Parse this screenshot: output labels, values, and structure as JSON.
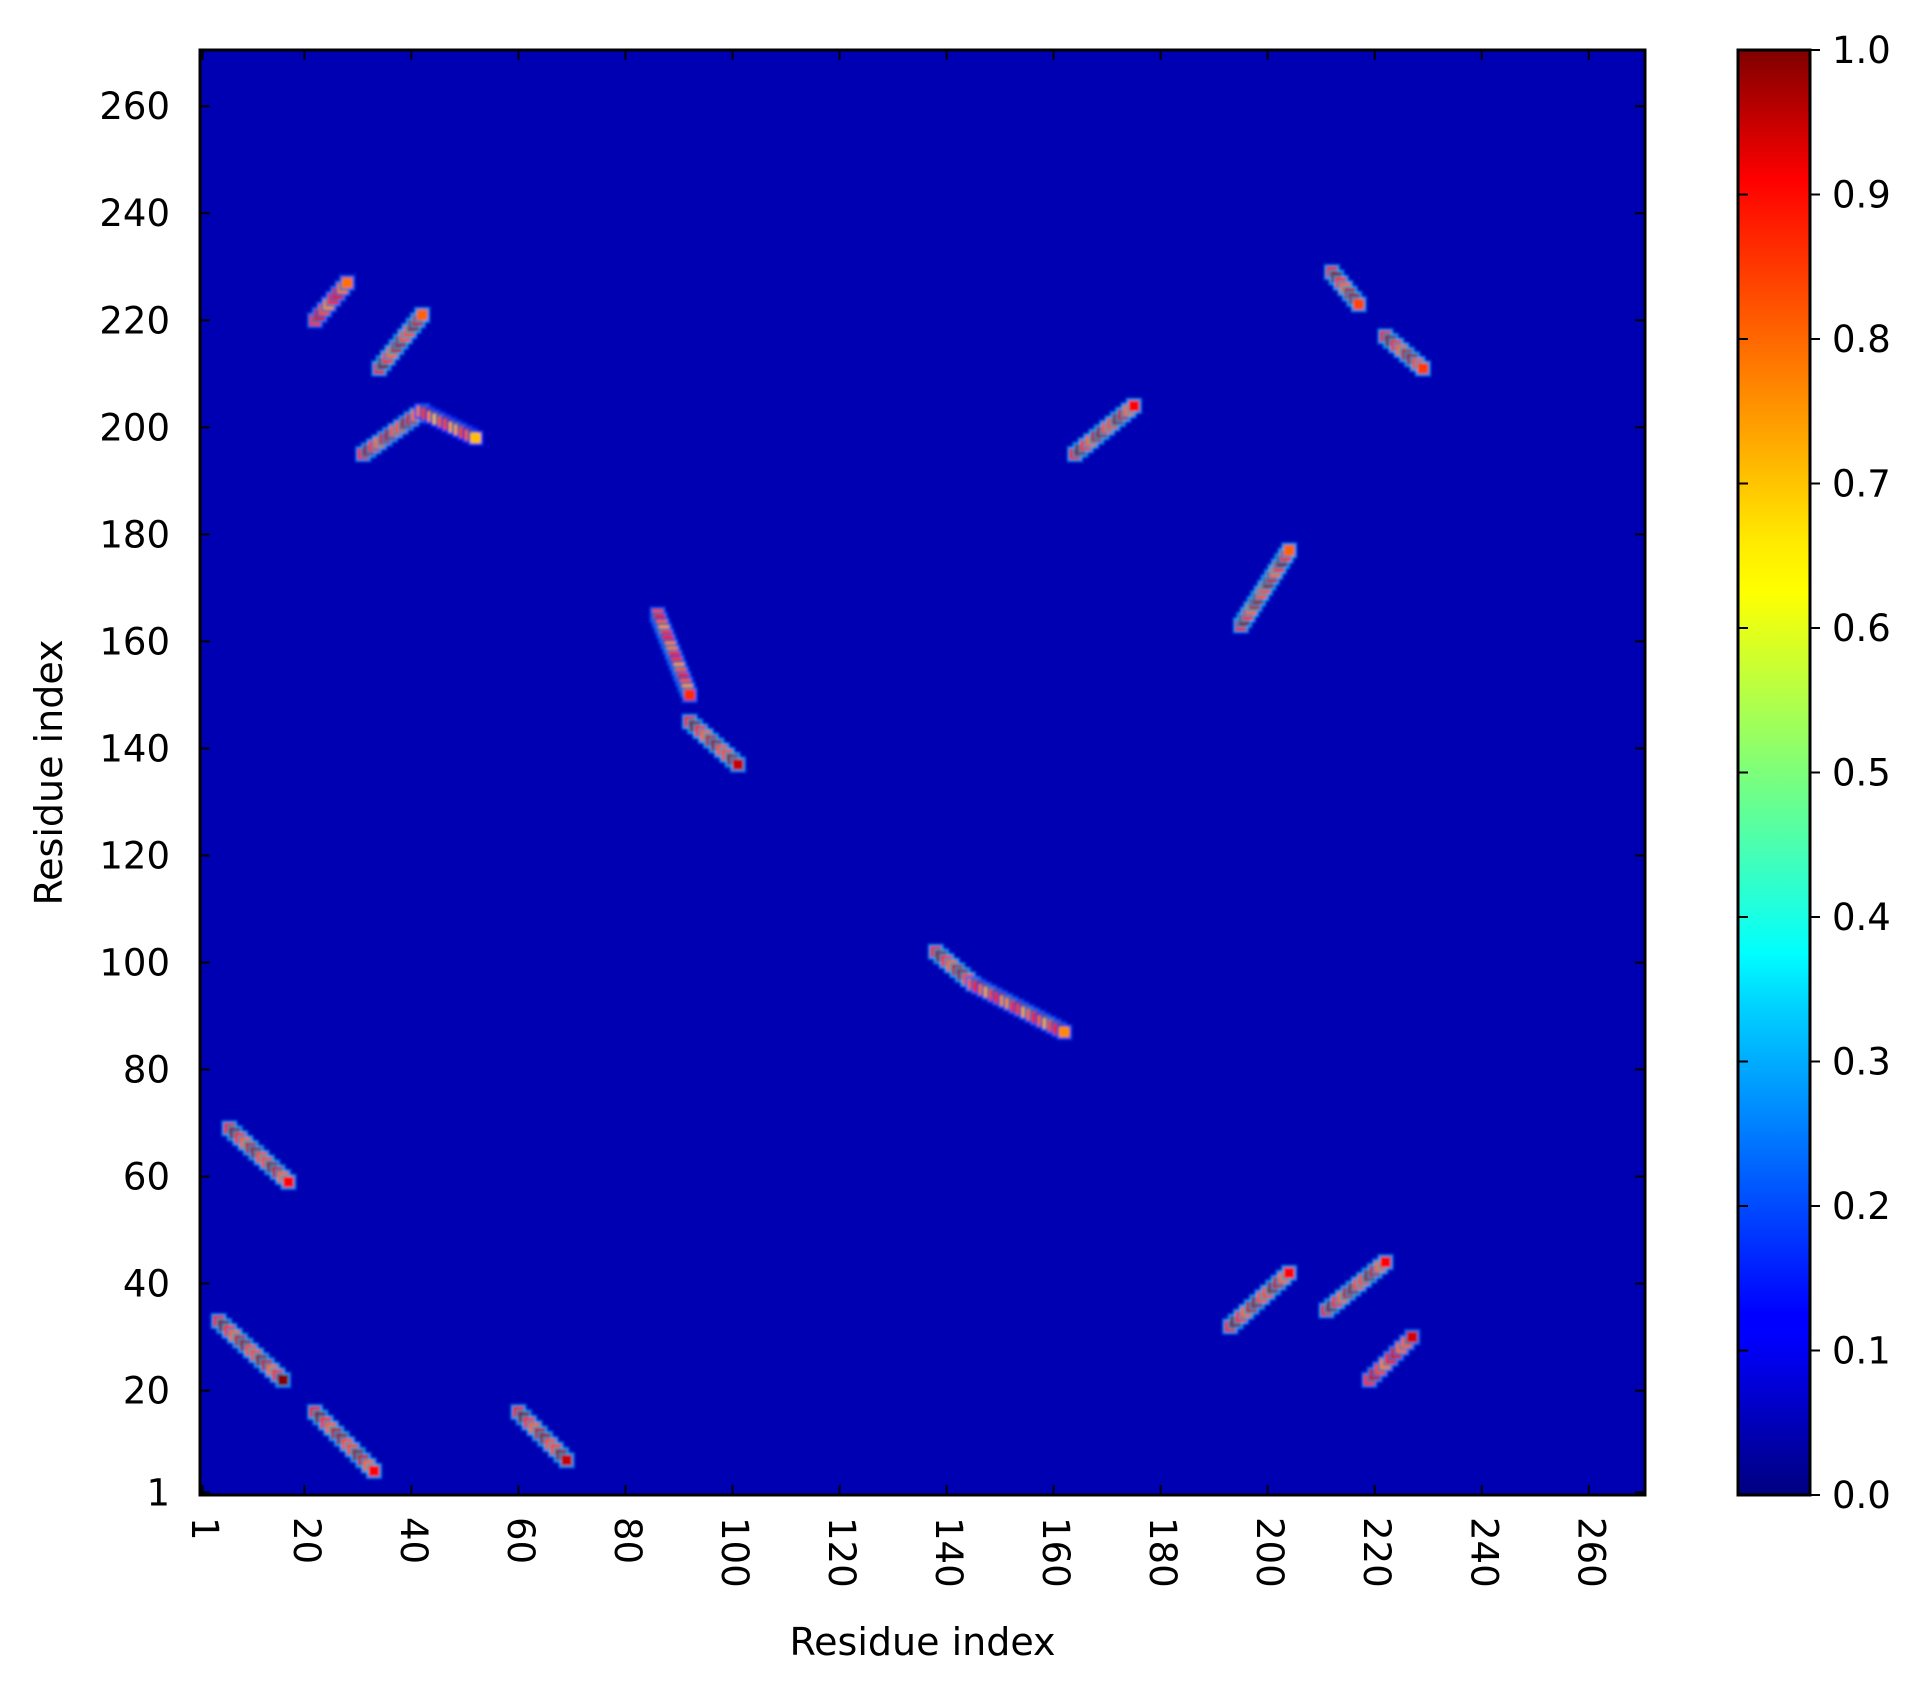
{
  "chart_data": {
    "type": "heatmap",
    "title": "",
    "xlabel": "Residue index",
    "ylabel": "Residue index",
    "xlim": [
      1,
      270
    ],
    "ylim": [
      1,
      270
    ],
    "x_ticks": [
      "1",
      "20",
      "40",
      "60",
      "80",
      "100",
      "120",
      "140",
      "160",
      "180",
      "200",
      "220",
      "240",
      "260"
    ],
    "y_ticks": [
      "1",
      "20",
      "40",
      "60",
      "80",
      "100",
      "120",
      "140",
      "160",
      "180",
      "200",
      "220",
      "240",
      "260"
    ],
    "x_tick_values": [
      1,
      20,
      40,
      60,
      80,
      100,
      120,
      140,
      160,
      180,
      200,
      220,
      240,
      260
    ],
    "y_tick_values": [
      1,
      20,
      40,
      60,
      80,
      100,
      120,
      140,
      160,
      180,
      200,
      220,
      240,
      260
    ],
    "colorbar": {
      "colormap": "jet",
      "range": [
        0.0,
        1.0
      ],
      "ticks": [
        "0.0",
        "0.1",
        "0.2",
        "0.3",
        "0.4",
        "0.5",
        "0.6",
        "0.7",
        "0.8",
        "0.9",
        "1.0"
      ],
      "tick_values": [
        0.0,
        0.1,
        0.2,
        0.3,
        0.4,
        0.5,
        0.6,
        0.7,
        0.8,
        0.9,
        1.0
      ]
    },
    "background_value": 0.05,
    "contact_features": [
      {
        "x": [
          4,
          16
        ],
        "y": [
          33,
          22
        ],
        "peak": 1.0
      },
      {
        "x": [
          22,
          33
        ],
        "y": [
          16,
          5
        ],
        "peak": 1.0
      },
      {
        "x": [
          60,
          69
        ],
        "y": [
          16,
          7
        ],
        "peak": 1.0
      },
      {
        "x": [
          6,
          17
        ],
        "y": [
          69,
          59
        ],
        "peak": 1.0
      },
      {
        "x": [
          22,
          28
        ],
        "y": [
          220,
          227
        ],
        "peak": 0.8
      },
      {
        "x": [
          34,
          42
        ],
        "y": [
          211,
          221
        ],
        "peak": 1.0
      },
      {
        "x": [
          31,
          42
        ],
        "y": [
          195,
          203
        ],
        "peak": 0.95
      },
      {
        "x": [
          42,
          52
        ],
        "y": [
          203,
          198
        ],
        "peak": 0.6
      },
      {
        "x": [
          86,
          92
        ],
        "y": [
          165,
          150
        ],
        "peak": 0.75
      },
      {
        "x": [
          92,
          101
        ],
        "y": [
          145,
          137
        ],
        "peak": 1.0
      },
      {
        "x": [
          138,
          145
        ],
        "y": [
          102,
          96
        ],
        "peak": 1.0
      },
      {
        "x": [
          145,
          162
        ],
        "y": [
          96,
          87
        ],
        "peak": 0.7
      },
      {
        "x": [
          164,
          175
        ],
        "y": [
          195,
          204
        ],
        "peak": 1.0
      },
      {
        "x": [
          195,
          204
        ],
        "y": [
          163,
          177
        ],
        "peak": 1.0
      },
      {
        "x": [
          212,
          217
        ],
        "y": [
          229,
          223
        ],
        "peak": 1.0
      },
      {
        "x": [
          222,
          229
        ],
        "y": [
          217,
          211
        ],
        "peak": 1.0
      },
      {
        "x": [
          193,
          204
        ],
        "y": [
          32,
          42
        ],
        "peak": 1.0
      },
      {
        "x": [
          211,
          222
        ],
        "y": [
          35,
          44
        ],
        "peak": 1.0
      },
      {
        "x": [
          219,
          227
        ],
        "y": [
          22,
          30
        ],
        "peak": 0.85
      }
    ]
  }
}
